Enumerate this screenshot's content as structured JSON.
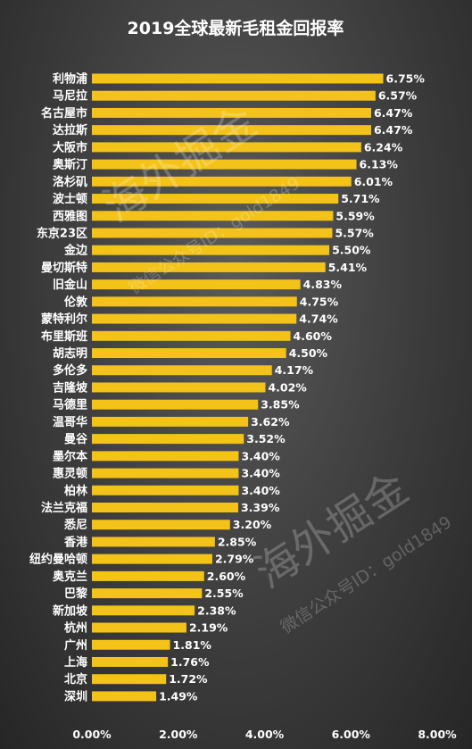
{
  "chart_data": {
    "type": "bar",
    "orientation": "horizontal",
    "title": "2019全球最新毛租金回报率",
    "categories": [
      "利物浦",
      "马尼拉",
      "名古屋市",
      "达拉斯",
      "大阪市",
      "奥斯汀",
      "洛杉矶",
      "波士顿",
      "西雅图",
      "东京23区",
      "金边",
      "曼切斯特",
      "旧金山",
      "伦敦",
      "蒙特利尔",
      "布里斯班",
      "胡志明",
      "多伦多",
      "吉隆坡",
      "马德里",
      "温哥华",
      "曼谷",
      "墨尔本",
      "惠灵顿",
      "柏林",
      "法兰克福",
      "悉尼",
      "香港",
      "纽约曼哈顿",
      "奥克兰",
      "巴黎",
      "新加坡",
      "杭州",
      "广州",
      "上海",
      "北京",
      "深圳"
    ],
    "values": [
      6.75,
      6.57,
      6.47,
      6.47,
      6.24,
      6.13,
      6.01,
      5.71,
      5.59,
      5.57,
      5.5,
      5.41,
      4.83,
      4.75,
      4.74,
      4.6,
      4.5,
      4.17,
      4.02,
      3.85,
      3.62,
      3.52,
      3.4,
      3.4,
      3.4,
      3.39,
      3.2,
      2.85,
      2.79,
      2.6,
      2.55,
      2.38,
      2.19,
      1.81,
      1.76,
      1.72,
      1.49
    ],
    "value_labels": [
      "6.75%",
      "6.57%",
      "6.47%",
      "6.47%",
      "6.24%",
      "6.13%",
      "6.01%",
      "5.71%",
      "5.59%",
      "5.57%",
      "5.50%",
      "5.41%",
      "4.83%",
      "4.75%",
      "4.74%",
      "4.60%",
      "4.50%",
      "4.17%",
      "4.02%",
      "3.85%",
      "3.62%",
      "3.52%",
      "3.40%",
      "3.40%",
      "3.40%",
      "3.39%",
      "3.20%",
      "2.85%",
      "2.79%",
      "2.60%",
      "2.55%",
      "2.38%",
      "2.19%",
      "1.81%",
      "1.76%",
      "1.72%",
      "1.49%"
    ],
    "xlim": [
      0,
      8
    ],
    "x_ticks": [
      "0.00%",
      "2.00%",
      "4.00%",
      "6.00%",
      "8.00%"
    ],
    "grid": false,
    "bar_color": "#f3c319"
  },
  "watermark": {
    "brand": "海外掘金",
    "account": "微信公众号ID：gold1849"
  }
}
